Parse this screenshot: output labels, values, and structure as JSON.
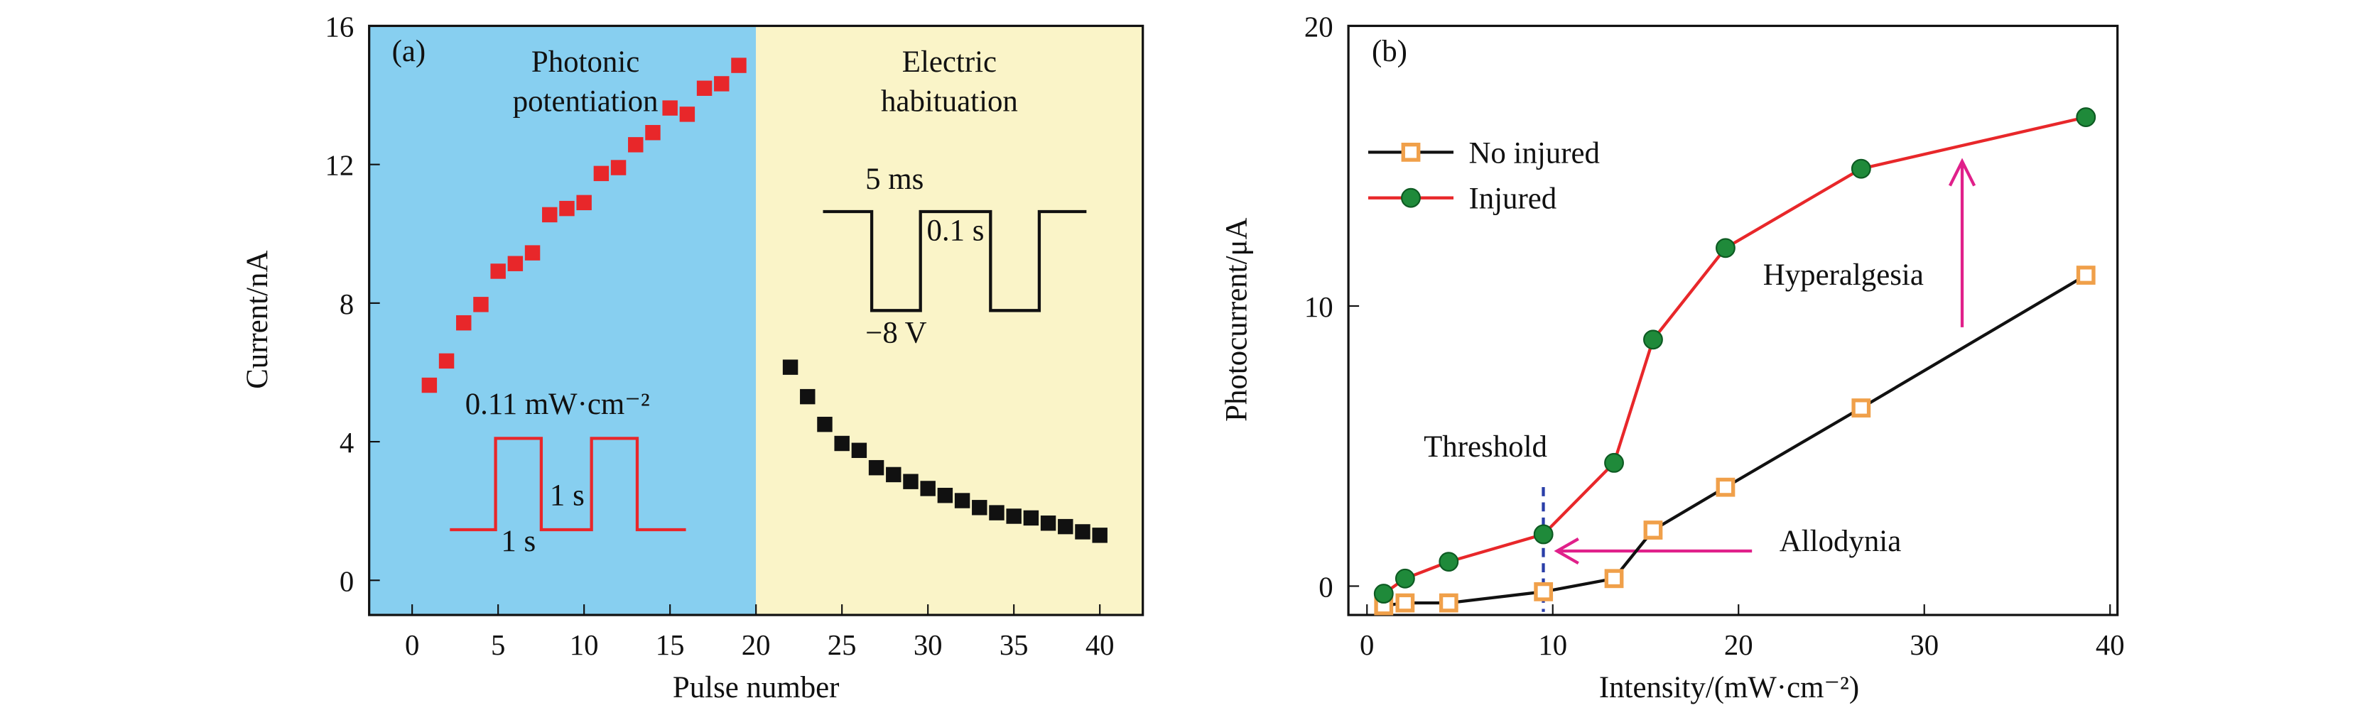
{
  "chart_data": [
    {
      "type": "scatter",
      "xlabel": "Pulse number",
      "ylabel": "Current/nA",
      "xlim": [
        -2.5,
        42.5
      ],
      "ylim": [
        -1,
        16
      ],
      "xticks": [
        0,
        5,
        10,
        15,
        20,
        25,
        30,
        35,
        40
      ],
      "yticks": [
        0,
        4,
        8,
        12,
        16
      ],
      "regions": [
        {
          "label": [
            "Photonic",
            "potentiation"
          ],
          "color": "#87cff0",
          "xlim": [
            -2.5,
            20
          ]
        },
        {
          "label": [
            "Electric",
            "habituation"
          ],
          "color": "#faf4c8",
          "xlim": [
            20,
            42.5
          ]
        }
      ],
      "series": [
        {
          "color": "#e8272a",
          "marker": "square",
          "x": [
            1,
            2,
            3,
            4,
            5,
            6,
            7,
            8,
            9,
            10,
            11,
            12,
            13,
            14,
            15,
            16,
            17,
            18,
            19
          ],
          "values": [
            5.63,
            6.33,
            7.43,
            7.96,
            8.92,
            9.14,
            9.45,
            10.55,
            10.73,
            10.9,
            11.74,
            11.91,
            12.57,
            12.92,
            13.63,
            13.45,
            14.2,
            14.33,
            14.86
          ]
        },
        {
          "color": "#111111",
          "marker": "square",
          "x": [
            22,
            23,
            24,
            25,
            26,
            27,
            28,
            29,
            30,
            31,
            32,
            33,
            34,
            35,
            36,
            37,
            38,
            39,
            40
          ],
          "values": [
            6.15,
            5.3,
            4.5,
            3.95,
            3.75,
            3.25,
            3.05,
            2.85,
            2.65,
            2.45,
            2.3,
            2.1,
            1.95,
            1.85,
            1.8,
            1.65,
            1.55,
            1.4,
            1.3
          ]
        }
      ],
      "annotations": [
        "(a)",
        "0.11 mW·cm⁻²",
        "1 s",
        "1 s",
        "5 ms",
        "0.1 s",
        "−8 V"
      ]
    },
    {
      "type": "line",
      "xlabel": "Intensity/(mW·cm⁻²)",
      "ylabel": "Photocurrent/μA",
      "xlim": [
        -1,
        40.4
      ],
      "ylim": [
        -1.03,
        20
      ],
      "xticks": [
        0,
        10,
        20,
        30,
        40
      ],
      "yticks": [
        0,
        10,
        20
      ],
      "legend": "upper left",
      "series": [
        {
          "name": "No injured",
          "color": "#111111",
          "marker": "square",
          "marker_color": "#f0a04a",
          "x": [
            0.9,
            2.05,
            4.4,
            9.5,
            13.3,
            15.4,
            19.3,
            26.6,
            38.7
          ],
          "values": [
            -0.7,
            -0.6,
            -0.6,
            -0.2,
            0.27,
            2.0,
            3.53,
            6.36,
            11.1
          ]
        },
        {
          "name": "Injured",
          "color": "#e8272a",
          "marker": "circle",
          "marker_color": "#1f8a3a",
          "x": [
            0.9,
            2.05,
            4.4,
            9.5,
            13.3,
            15.4,
            19.3,
            26.6,
            38.7
          ],
          "values": [
            -0.27,
            0.27,
            0.87,
            1.85,
            4.4,
            8.8,
            12.07,
            14.9,
            16.74
          ]
        }
      ],
      "annotations": [
        "(b)",
        "Threshold",
        "Allodynia",
        "Hyperalgesia"
      ]
    }
  ]
}
